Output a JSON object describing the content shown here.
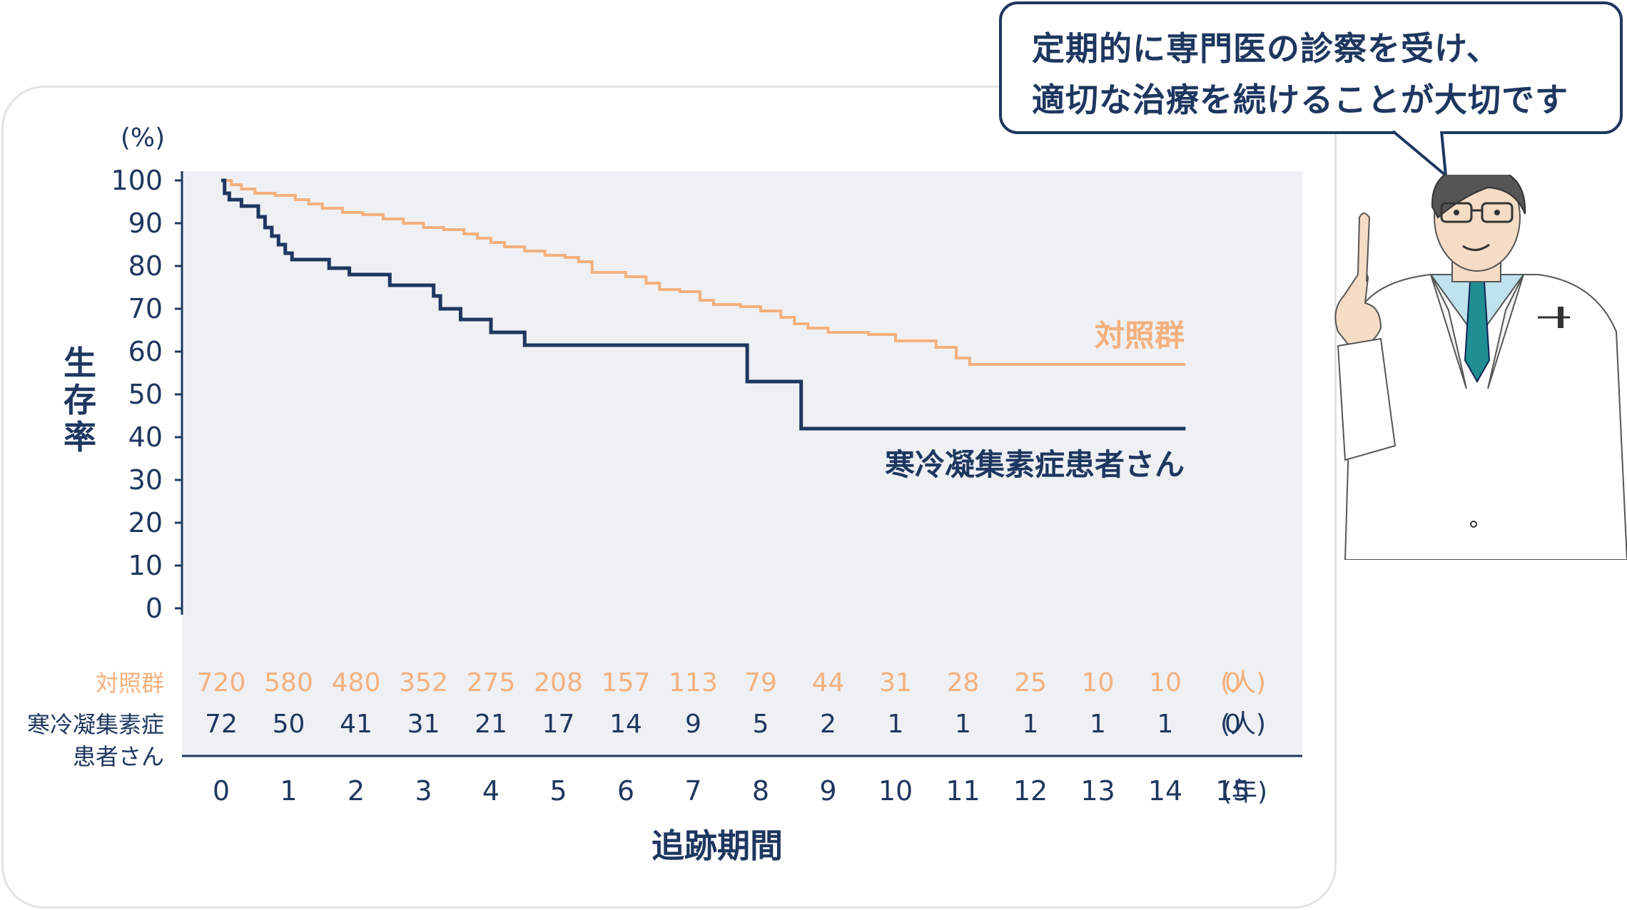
{
  "speech_bubble": {
    "line1": "定期的に専門医の診察を受け、",
    "line2": "適切な治療を続けることが大切です"
  },
  "colors": {
    "control": "#f5b07d",
    "patients": "#1e3760",
    "plot_bg": "#eef0f4",
    "axis": "#1e3760"
  },
  "chart_data": {
    "type": "line",
    "step": true,
    "ylabel": "生存率",
    "yunit": "(%)",
    "xlabel": "追跡期間",
    "ylim": [
      0,
      100
    ],
    "xlim": [
      0,
      15
    ],
    "yticks": [
      "100",
      "90",
      "80",
      "70",
      "60",
      "50",
      "40",
      "30",
      "20",
      "10",
      "0"
    ],
    "xticks": [
      "0",
      "1",
      "2",
      "3",
      "4",
      "5",
      "6",
      "7",
      "8",
      "9",
      "10",
      "11",
      "12",
      "13",
      "14",
      "15"
    ],
    "xunit": "(年)",
    "series": [
      {
        "name": "対照群",
        "color": "#f5b07d",
        "points": [
          [
            0,
            100
          ],
          [
            0.15,
            99
          ],
          [
            0.3,
            98
          ],
          [
            0.5,
            97
          ],
          [
            0.8,
            96.5
          ],
          [
            1.1,
            95.5
          ],
          [
            1.3,
            94.5
          ],
          [
            1.5,
            93.5
          ],
          [
            1.8,
            92.5
          ],
          [
            2.1,
            92
          ],
          [
            2.4,
            91
          ],
          [
            2.7,
            90
          ],
          [
            3.0,
            89
          ],
          [
            3.3,
            88.5
          ],
          [
            3.6,
            87.5
          ],
          [
            3.8,
            86.5
          ],
          [
            4.0,
            85.5
          ],
          [
            4.2,
            84.5
          ],
          [
            4.5,
            83.5
          ],
          [
            4.8,
            82.5
          ],
          [
            5.1,
            82
          ],
          [
            5.3,
            81
          ],
          [
            5.5,
            78.5
          ],
          [
            6.0,
            77.5
          ],
          [
            6.3,
            76
          ],
          [
            6.5,
            74.5
          ],
          [
            6.8,
            74
          ],
          [
            7.1,
            72
          ],
          [
            7.3,
            71
          ],
          [
            7.7,
            70.5
          ],
          [
            8.0,
            69.5
          ],
          [
            8.3,
            68
          ],
          [
            8.5,
            66.5
          ],
          [
            8.7,
            65.5
          ],
          [
            9.0,
            64.5
          ],
          [
            9.6,
            64
          ],
          [
            10.0,
            62.5
          ],
          [
            10.3,
            62.5
          ],
          [
            10.6,
            61
          ],
          [
            10.9,
            58.5
          ],
          [
            11.1,
            57
          ],
          [
            11.5,
            57
          ],
          [
            14.3,
            57
          ]
        ]
      },
      {
        "name": "寒冷凝集素症患者さん",
        "color": "#1e3760",
        "points": [
          [
            0,
            100
          ],
          [
            0.05,
            97
          ],
          [
            0.12,
            95.5
          ],
          [
            0.3,
            94
          ],
          [
            0.55,
            91.5
          ],
          [
            0.65,
            89
          ],
          [
            0.75,
            87
          ],
          [
            0.85,
            85
          ],
          [
            0.95,
            83
          ],
          [
            1.05,
            81.5
          ],
          [
            1.6,
            79.5
          ],
          [
            1.9,
            78
          ],
          [
            2.5,
            75.5
          ],
          [
            3.15,
            73
          ],
          [
            3.25,
            70
          ],
          [
            3.55,
            67.5
          ],
          [
            4.0,
            64.5
          ],
          [
            4.5,
            61.5
          ],
          [
            7.8,
            53
          ],
          [
            8.6,
            42
          ],
          [
            14.3,
            42
          ]
        ]
      }
    ],
    "series_labels": {
      "control": "対照群",
      "patients": "寒冷凝集素症患者さん"
    },
    "at_risk": {
      "control_label": "対照群",
      "patients_label_line1": "寒冷凝集素症",
      "patients_label_line2": "患者さん",
      "control": [
        "720",
        "580",
        "480",
        "352",
        "275",
        "208",
        "157",
        "113",
        "79",
        "44",
        "31",
        "28",
        "25",
        "10",
        "10",
        "0"
      ],
      "patients": [
        "72",
        "50",
        "41",
        "31",
        "21",
        "17",
        "14",
        "9",
        "5",
        "2",
        "1",
        "1",
        "1",
        "1",
        "1",
        "0"
      ],
      "unit": "(人)"
    }
  }
}
